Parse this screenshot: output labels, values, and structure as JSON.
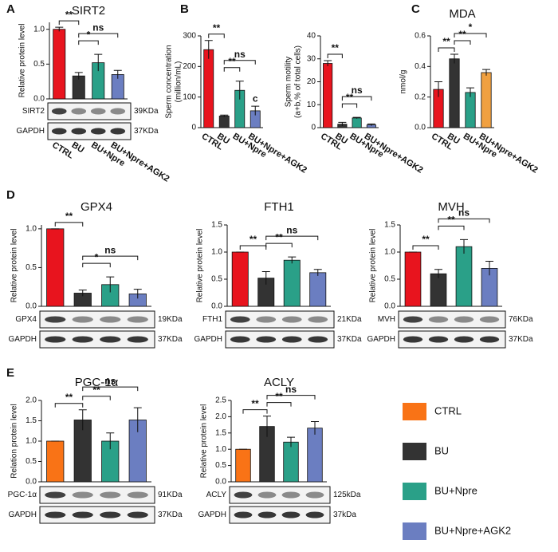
{
  "chart_data": [
    {
      "type": "bar",
      "panel": "A",
      "title": "SIRT2",
      "ylabel": "Relative protein level",
      "categories": [
        "CTRL",
        "BU",
        "BU+Npre",
        "BU+Npre+AGK2"
      ],
      "values": [
        1.0,
        0.33,
        0.52,
        0.35
      ],
      "errors": [
        0.03,
        0.05,
        0.12,
        0.06
      ],
      "colors": [
        "#e8141e",
        "#333333",
        "#2aa088",
        "#6b7ec1"
      ],
      "ylim": [
        0,
        1.1
      ],
      "yticks": [
        {
          "value": 0,
          "label": "0.0"
        },
        0.5,
        {
          "value": 1,
          "label": "1.0"
        }
      ],
      "annotations": [
        "**",
        "*",
        "ns"
      ],
      "blots": [
        {
          "protein": "SIRT2",
          "size": "39KDa"
        },
        {
          "protein": "GAPDH",
          "size": "37KDa"
        }
      ]
    },
    {
      "type": "bar",
      "panel": "B",
      "ylabel": [
        "Sperm concentration",
        "(million/mL)"
      ],
      "categories": [
        "CTRL",
        "BU",
        "BU+Npre",
        "BU+Npre+AGK2"
      ],
      "values": [
        255,
        38,
        122,
        55
      ],
      "errors": [
        30,
        3,
        30,
        15
      ],
      "colors": [
        "#e8141e",
        "#333333",
        "#2aa088",
        "#6b7ec1"
      ],
      "ylim": [
        0,
        300
      ],
      "yticks": [
        0,
        100,
        200,
        300
      ],
      "annotations": [
        "**",
        "**",
        "ns",
        "c"
      ]
    },
    {
      "type": "bar",
      "ylabel": [
        "Sperm motility",
        "(a+b,% of total cells)"
      ],
      "categories": [
        "CTRL",
        "BU",
        "BU+Npre",
        "BU+Npre+AGK2"
      ],
      "values": [
        28,
        1.5,
        4.2,
        1.2
      ],
      "errors": [
        1.2,
        0.8,
        0.3,
        0.4
      ],
      "colors": [
        "#e8141e",
        "#333333",
        "#2aa088",
        "#6b7ec1"
      ],
      "ylim": [
        0,
        40
      ],
      "yticks": [
        0,
        10,
        20,
        30,
        40
      ],
      "annotations": [
        "**",
        "**",
        "ns"
      ]
    },
    {
      "type": "bar",
      "panel": "C",
      "title": "MDA",
      "ylabel": "nmol/g",
      "categories": [
        "CTRL",
        "BU",
        "BU+Npre",
        "BU+Npre+AGK2"
      ],
      "values": [
        0.25,
        0.45,
        0.23,
        0.36
      ],
      "errors": [
        0.05,
        0.03,
        0.03,
        0.02
      ],
      "colors": [
        "#e8141e",
        "#333333",
        "#2aa088",
        "#f0a040"
      ],
      "ylim": [
        0,
        0.6
      ],
      "yticks": [
        {
          "value": 0,
          "label": "0.0"
        },
        0.2,
        0.4,
        0.6
      ],
      "annotations": [
        "**",
        "**",
        "*"
      ]
    },
    {
      "type": "bar",
      "panel": "D",
      "title": "GPX4",
      "ylabel": "Relative protein level",
      "values": [
        1.0,
        0.17,
        0.28,
        0.16
      ],
      "errors": [
        0.0,
        0.04,
        0.1,
        0.06
      ],
      "colors": [
        "#e8141e",
        "#333333",
        "#2aa088",
        "#6b7ec1"
      ],
      "ylim": [
        0,
        1.05
      ],
      "yticks": [
        {
          "value": 0,
          "label": "0.0"
        },
        0.5,
        {
          "value": 1,
          "label": "1.0"
        }
      ],
      "annotations": [
        "**",
        "*",
        "ns"
      ],
      "blots": [
        {
          "protein": "GPX4",
          "size": "19KDa"
        },
        {
          "protein": "GAPDH",
          "size": "37KDa"
        }
      ]
    },
    {
      "type": "bar",
      "title": "FTH1",
      "ylabel": "Relative protein level",
      "values": [
        1.0,
        0.52,
        0.85,
        0.62
      ],
      "errors": [
        0.0,
        0.12,
        0.06,
        0.06
      ],
      "colors": [
        "#e8141e",
        "#333333",
        "#2aa088",
        "#6b7ec1"
      ],
      "ylim": [
        0,
        1.5
      ],
      "yticks": [
        {
          "value": 0,
          "label": "0.0"
        },
        0.5,
        {
          "value": 1,
          "label": "1.0"
        },
        1.5
      ],
      "annotations": [
        "**",
        "**",
        "ns"
      ],
      "blots": [
        {
          "protein": "FTH1",
          "size": "21KDa"
        },
        {
          "protein": "GAPDH",
          "size": "37KDa"
        }
      ]
    },
    {
      "type": "bar",
      "title": "MVH",
      "ylabel": "Relative protein level",
      "values": [
        1.0,
        0.6,
        1.1,
        0.7
      ],
      "errors": [
        0.0,
        0.08,
        0.13,
        0.13
      ],
      "colors": [
        "#e8141e",
        "#333333",
        "#2aa088",
        "#6b7ec1"
      ],
      "ylim": [
        0,
        1.5
      ],
      "yticks": [
        {
          "value": 0,
          "label": "0.0"
        },
        0.5,
        {
          "value": 1,
          "label": "1.0"
        },
        1.5
      ],
      "annotations": [
        "**",
        "**",
        "ns"
      ],
      "blots": [
        {
          "protein": "MVH",
          "size": "76KDa"
        },
        {
          "protein": "GAPDH",
          "size": "37KDa"
        }
      ]
    },
    {
      "type": "bar",
      "panel": "E",
      "title": "PGC-1α",
      "ylabel": "Relation protein level",
      "values": [
        1.0,
        1.52,
        1.0,
        1.52
      ],
      "errors": [
        0.0,
        0.25,
        0.2,
        0.3
      ],
      "colors": [
        "#f97316",
        "#333333",
        "#2aa088",
        "#6b7ec1"
      ],
      "ylim": [
        0,
        2.0
      ],
      "yticks": [
        {
          "value": 0,
          "label": "0.0"
        },
        0.5,
        {
          "value": 1,
          "label": "1.0"
        },
        1.5,
        {
          "value": 2,
          "label": "2.0"
        }
      ],
      "annotations": [
        "**",
        "**",
        "ns"
      ],
      "blots": [
        {
          "protein": "PGC-1α",
          "size": "91KDa"
        },
        {
          "protein": "GAPDH",
          "size": "37KDa"
        }
      ]
    },
    {
      "type": "bar",
      "title": "ACLY",
      "ylabel": "Relative protein level",
      "values": [
        1.0,
        1.7,
        1.22,
        1.65
      ],
      "errors": [
        0.0,
        0.32,
        0.15,
        0.2
      ],
      "colors": [
        "#f97316",
        "#333333",
        "#2aa088",
        "#6b7ec1"
      ],
      "ylim": [
        0,
        2.5
      ],
      "yticks": [
        {
          "value": 0,
          "label": "0.0"
        },
        0.5,
        {
          "value": 1,
          "label": "1.0"
        },
        1.5,
        {
          "value": 2,
          "label": "2.0"
        },
        2.5
      ],
      "annotations": [
        "**",
        "**",
        "ns"
      ],
      "blots": [
        {
          "protein": "ACLY",
          "size": "125kDa"
        },
        {
          "protein": "GAPDH",
          "size": "37kDa"
        }
      ]
    }
  ],
  "legend": {
    "labels": [
      "CTRL",
      "BU",
      "BU+Npre",
      "BU+Npre+AGK2"
    ],
    "colors": [
      "#f97316",
      "#333333",
      "#2aa088",
      "#6b7ec1"
    ]
  }
}
